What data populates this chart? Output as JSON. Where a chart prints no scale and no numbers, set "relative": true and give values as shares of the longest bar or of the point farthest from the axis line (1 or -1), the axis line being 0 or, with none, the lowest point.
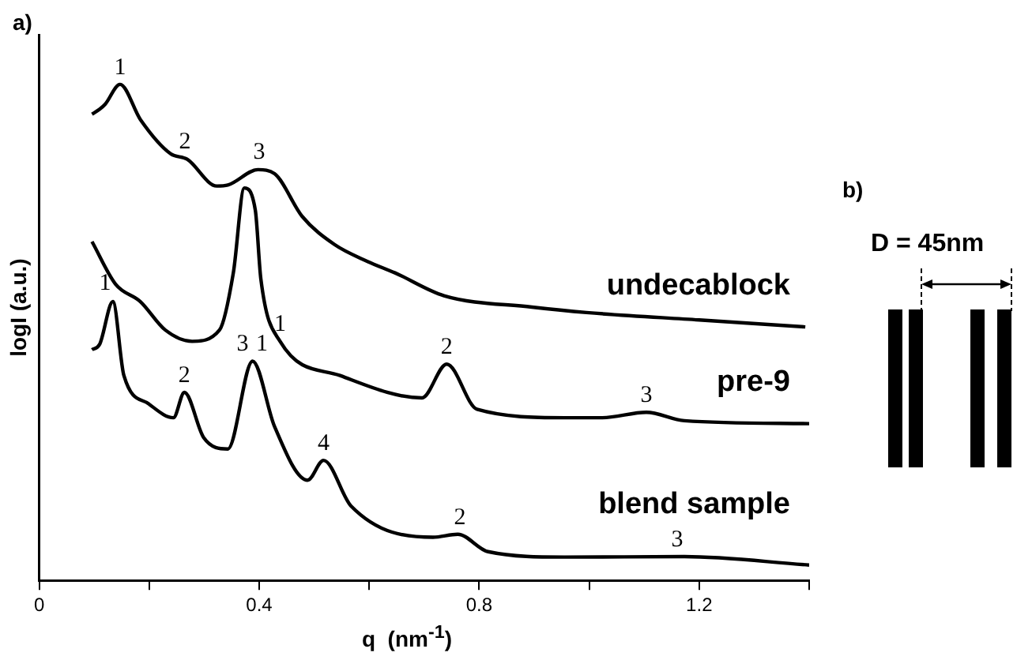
{
  "chart_data": {
    "type": "line",
    "relative": true,
    "xlabel": "q  (nm$^{-1}$)",
    "ylabel": "logI (a.u.)",
    "xlim": [
      0,
      1.4
    ],
    "xticks": [
      0,
      {
        "value": 0.2,
        "label": null
      },
      0.4,
      {
        "value": 0.6,
        "label": null
      },
      0.8,
      {
        "value": 1.0,
        "label": null
      },
      1.2,
      {
        "value": 1.4,
        "label": null
      }
    ],
    "grid": false,
    "legend": false,
    "marker": "none",
    "line_style": "solid",
    "series": [
      {
        "name": "undecablock",
        "color": "#000000",
        "x": [
          0.096,
          0.11,
          0.12,
          0.147,
          0.184,
          0.239,
          0.269,
          0.323,
          0.343,
          0.398,
          0.428,
          0.478,
          0.537,
          0.597,
          0.647,
          0.736,
          0.896,
          0.995,
          1.2,
          1.393
        ],
        "values": [
          0.94,
          0.95,
          0.96,
          1.0,
          0.929,
          0.86,
          0.849,
          0.795,
          0.797,
          0.828,
          0.82,
          0.734,
          0.677,
          0.643,
          0.62,
          0.574,
          0.551,
          0.54,
          0.525,
          0.511
        ]
      },
      {
        "name": "pre-9",
        "color": "#000000",
        "x": [
          0.096,
          0.139,
          0.184,
          0.229,
          0.278,
          0.328,
          0.353,
          0.373,
          0.393,
          0.403,
          0.438,
          0.547,
          0.696,
          0.741,
          0.796,
          0.955,
          1.024,
          1.104,
          1.173,
          1.4
        ],
        "values": [
          0.683,
          0.597,
          0.562,
          0.505,
          0.482,
          0.505,
          0.62,
          0.791,
          0.746,
          0.608,
          0.482,
          0.413,
          0.368,
          0.436,
          0.345,
          0.328,
          0.328,
          0.339,
          0.322,
          0.316
        ]
      },
      {
        "name": "blend sample",
        "color": "#000000",
        "x": [
          0.096,
          0.11,
          0.134,
          0.154,
          0.199,
          0.244,
          0.264,
          0.299,
          0.343,
          0.388,
          0.428,
          0.488,
          0.517,
          0.567,
          0.716,
          0.761,
          0.816,
          0.955,
          1.173,
          1.4
        ],
        "values": [
          0.465,
          0.476,
          0.562,
          0.413,
          0.356,
          0.328,
          0.379,
          0.288,
          0.265,
          0.442,
          0.31,
          0.202,
          0.242,
          0.15,
          0.087,
          0.093,
          0.058,
          0.047,
          0.048,
          0.031
        ]
      }
    ],
    "annotations": [
      "a)",
      "b)",
      "D = 45nm",
      {
        "text": "1",
        "x": 0.147,
        "y": 1.0
      },
      {
        "text": "2",
        "x": 0.265,
        "y": 0.85
      },
      {
        "text": "3",
        "x": 0.4,
        "y": 0.83
      },
      {
        "text": "1",
        "x": 0.438,
        "y": 0.482
      },
      {
        "text": "2",
        "x": 0.741,
        "y": 0.436
      },
      {
        "text": "3",
        "x": 1.104,
        "y": 0.339
      },
      {
        "text": "1",
        "x": 0.12,
        "y": 0.565
      },
      {
        "text": "2",
        "x": 0.264,
        "y": 0.379
      },
      {
        "text": "3",
        "x": 0.37,
        "y": 0.442
      },
      {
        "text": "1",
        "x": 0.405,
        "y": 0.442
      },
      {
        "text": "4",
        "x": 0.517,
        "y": 0.242
      },
      {
        "text": "2",
        "x": 0.765,
        "y": 0.093
      },
      {
        "text": "3",
        "x": 1.16,
        "y": 0.048
      }
    ]
  }
}
